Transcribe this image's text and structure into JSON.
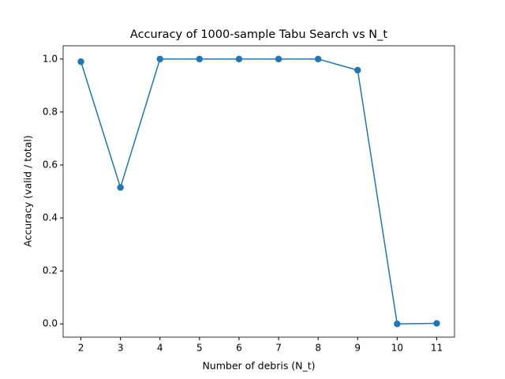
{
  "chart_data": {
    "type": "line",
    "title": "Accuracy of 1000-sample Tabu Search vs N_t",
    "x_label": "Number of debris (N_t)",
    "y_label": "Accuracy (valid / total)",
    "x": [
      2,
      3,
      4,
      5,
      6,
      7,
      8,
      9,
      10,
      11
    ],
    "series": [
      {
        "color": "#1f77b4",
        "values": [
          0.99,
          0.515,
          1.0,
          1.0,
          1.0,
          1.0,
          1.0,
          0.958,
          0.0,
          0.002
        ]
      }
    ],
    "xlim": [
      1.55,
      11.45
    ],
    "xticks": [
      2,
      3,
      4,
      5,
      6,
      7,
      8,
      9,
      10,
      11
    ],
    "ylim": [
      -0.05,
      1.05
    ],
    "yticks": [
      {
        "value": 0,
        "label": "0.0"
      },
      {
        "value": 0.2,
        "label": "0.2"
      },
      {
        "value": 0.4,
        "label": "0.4"
      },
      {
        "value": 0.6,
        "label": "0.6"
      },
      {
        "value": 0.8,
        "label": "0.8"
      },
      {
        "value": 1,
        "label": "1.0"
      }
    ],
    "grid": false
  }
}
